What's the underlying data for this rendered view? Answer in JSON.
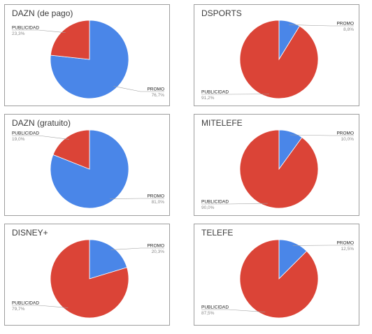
{
  "colors": {
    "promo": "#4a86e8",
    "publicidad": "#db4437",
    "leader": "#9e9e9e"
  },
  "chart_data": [
    {
      "type": "pie",
      "title": "DAZN (de pago)",
      "slices": [
        {
          "label": "PROMO",
          "value": 76.7,
          "display": "76,7%",
          "color": "#4a86e8"
        },
        {
          "label": "PUBLICIDAD",
          "value": 23.3,
          "display": "23,3%",
          "color": "#db4437"
        }
      ]
    },
    {
      "type": "pie",
      "title": "DSPORTS",
      "slices": [
        {
          "label": "PROMO",
          "value": 8.8,
          "display": "8,8%",
          "color": "#4a86e8"
        },
        {
          "label": "PUBLICIDAD",
          "value": 91.2,
          "display": "91,2%",
          "color": "#db4437"
        }
      ]
    },
    {
      "type": "pie",
      "title": "DAZN (gratuito)",
      "slices": [
        {
          "label": "PROMO",
          "value": 81.0,
          "display": "81,0%",
          "color": "#4a86e8"
        },
        {
          "label": "PUBLICIDAD",
          "value": 19.0,
          "display": "19,0%",
          "color": "#db4437"
        }
      ]
    },
    {
      "type": "pie",
      "title": "MITELEFE",
      "slices": [
        {
          "label": "PROMO",
          "value": 10.0,
          "display": "10,0%",
          "color": "#4a86e8"
        },
        {
          "label": "PUBLICIDAD",
          "value": 90.0,
          "display": "90,0%",
          "color": "#db4437"
        }
      ]
    },
    {
      "type": "pie",
      "title": "DISNEY+",
      "slices": [
        {
          "label": "PROMO",
          "value": 20.3,
          "display": "20,3%",
          "color": "#4a86e8"
        },
        {
          "label": "PUBLICIDAD",
          "value": 79.7,
          "display": "79,7%",
          "color": "#db4437"
        }
      ]
    },
    {
      "type": "pie",
      "title": "TELEFE",
      "slices": [
        {
          "label": "PROMO",
          "value": 12.5,
          "display": "12,5%",
          "color": "#4a86e8"
        },
        {
          "label": "PUBLICIDAD",
          "value": 87.5,
          "display": "87,5%",
          "color": "#db4437"
        }
      ]
    }
  ]
}
